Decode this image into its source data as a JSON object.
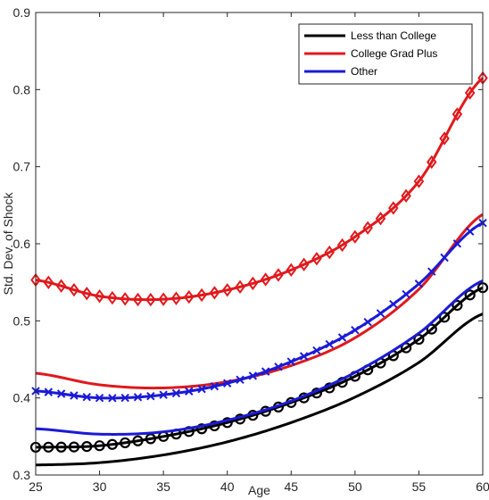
{
  "chart_data": {
    "type": "line",
    "xlabel": "Age",
    "ylabel": "Std. Dev. of Shock",
    "xlim": [
      25,
      60
    ],
    "ylim": [
      0.3,
      0.9
    ],
    "xticks": [
      25,
      30,
      35,
      40,
      45,
      50,
      55,
      60
    ],
    "yticks": [
      0.3,
      0.4,
      0.5,
      0.6,
      0.7,
      0.8,
      0.9
    ],
    "grid": false,
    "legend_position": "top-right",
    "legend": [
      {
        "label": "Less than College",
        "color": "#000000"
      },
      {
        "label": "College Grad Plus",
        "color": "#e0191c"
      },
      {
        "label": "Other",
        "color": "#1a1ad6"
      }
    ],
    "series": [
      {
        "name": "Less than College",
        "group": "Less than College",
        "color": "#000000",
        "marker": "none",
        "x": [
          25,
          30,
          35,
          40,
          45,
          50,
          55,
          60
        ],
        "y": [
          0.313,
          0.316,
          0.326,
          0.343,
          0.368,
          0.401,
          0.446,
          0.509
        ]
      },
      {
        "name": "Less than College",
        "group": "Less than College",
        "color": "#000000",
        "marker": "circle",
        "x": [
          25,
          30,
          35,
          40,
          45,
          50,
          55,
          60
        ],
        "y": [
          0.336,
          0.338,
          0.35,
          0.368,
          0.394,
          0.428,
          0.476,
          0.543
        ]
      },
      {
        "name": "College Grad Plus",
        "group": "College Grad Plus",
        "color": "#e0191c",
        "marker": "none",
        "x": [
          25,
          30,
          35,
          40,
          45,
          50,
          55,
          60
        ],
        "y": [
          0.432,
          0.417,
          0.413,
          0.421,
          0.442,
          0.478,
          0.541,
          0.638
        ]
      },
      {
        "name": "College Grad Plus",
        "group": "College Grad Plus",
        "color": "#e0191c",
        "marker": "diamond",
        "x": [
          25,
          30,
          35,
          40,
          45,
          50,
          55,
          60
        ],
        "y": [
          0.553,
          0.532,
          0.528,
          0.54,
          0.566,
          0.609,
          0.681,
          0.815
        ]
      },
      {
        "name": "Other",
        "group": "Other",
        "color": "#1a1ad6",
        "marker": "none",
        "x": [
          25,
          30,
          35,
          40,
          45,
          50,
          55,
          60
        ],
        "y": [
          0.36,
          0.353,
          0.356,
          0.371,
          0.396,
          0.433,
          0.484,
          0.552
        ]
      },
      {
        "name": "Other",
        "group": "Other",
        "color": "#1a1ad6",
        "marker": "x",
        "x": [
          25,
          30,
          35,
          40,
          45,
          50,
          55,
          60
        ],
        "y": [
          0.409,
          0.4,
          0.404,
          0.419,
          0.447,
          0.488,
          0.548,
          0.627
        ]
      }
    ]
  }
}
